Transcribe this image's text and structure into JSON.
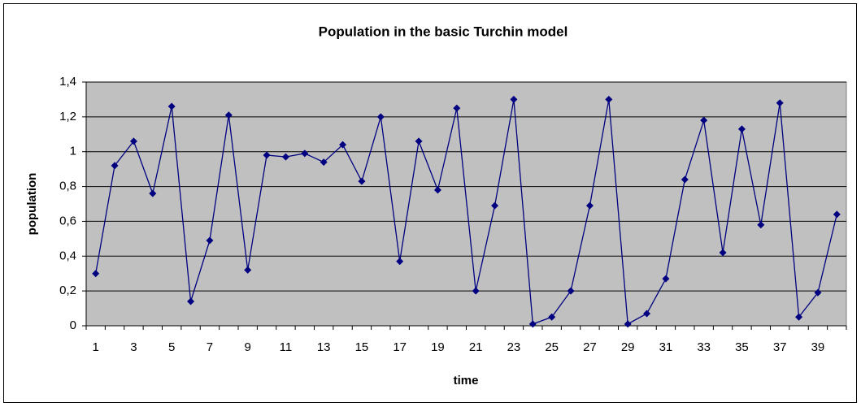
{
  "chart_data": {
    "type": "line",
    "title": "Population in the basic Turchin model",
    "x_label": "time",
    "y_label": "population",
    "categories": [
      "1",
      null,
      "3",
      null,
      "5",
      null,
      "7",
      null,
      "9",
      null,
      "11",
      null,
      "13",
      null,
      "15",
      null,
      "17",
      null,
      "19",
      null,
      "21",
      null,
      "23",
      null,
      "25",
      null,
      "27",
      null,
      "29",
      null,
      "31",
      null,
      "33",
      null,
      "35",
      null,
      "37",
      null,
      "39",
      null
    ],
    "series": [
      {
        "name": "population",
        "color": "#000080",
        "values": [
          0.3,
          0.92,
          1.06,
          0.76,
          1.26,
          0.14,
          0.49,
          1.21,
          0.32,
          0.98,
          0.97,
          0.99,
          0.94,
          1.04,
          0.83,
          1.2,
          0.37,
          1.06,
          0.78,
          1.25,
          0.2,
          0.69,
          1.3,
          0.01,
          0.05,
          0.2,
          0.69,
          1.3,
          0.01,
          0.07,
          0.27,
          0.84,
          1.18,
          0.42,
          1.13,
          0.58,
          1.28,
          0.05,
          0.19,
          0.64
        ]
      }
    ],
    "ylim": [
      0,
      1.4
    ],
    "yticks": [
      0,
      {
        "value": 0.2,
        "label": "0,2"
      },
      {
        "value": 0.4,
        "label": "0,4"
      },
      {
        "value": 0.6,
        "label": "0,6"
      },
      {
        "value": 0.8,
        "label": "0,8"
      },
      1,
      {
        "value": 1.2,
        "label": "1,2"
      },
      {
        "value": 1.4,
        "label": "1,4"
      }
    ],
    "grid": true,
    "plot_background": "#c0c0c0"
  }
}
